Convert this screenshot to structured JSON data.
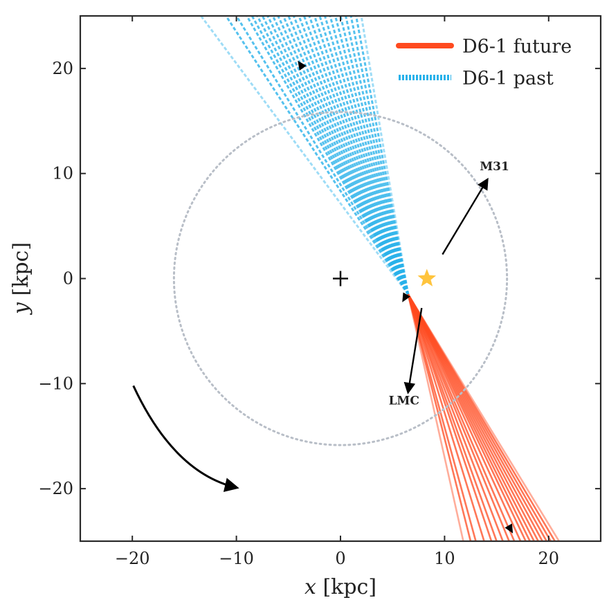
{
  "chart_data": {
    "type": "line",
    "xlabel_var": "x",
    "xlabel_unit": "[kpc]",
    "ylabel_var": "y",
    "ylabel_unit": "[kpc]",
    "xlim": [
      -25,
      25
    ],
    "ylim": [
      -25,
      25
    ],
    "xticks": [
      -20,
      -10,
      0,
      10,
      20
    ],
    "yticks": [
      -20,
      -10,
      0,
      10,
      20
    ],
    "xtick_labels": [
      "−20",
      "−10",
      "0",
      "10",
      "20"
    ],
    "ytick_labels": [
      "−20",
      "−10",
      "0",
      "10",
      "20"
    ],
    "grid": false,
    "legend_position": "top-right",
    "series": [
      {
        "name": "D6-1 future",
        "style": "solid",
        "color": "#ff4a1f",
        "origin": [
          6.5,
          -1.5
        ],
        "end_x": [
          11.8,
          12.5,
          13.0,
          13.8,
          14.5,
          15.0,
          15.6,
          16.2,
          16.7,
          17.3,
          17.8,
          18.2,
          18.6,
          19.0,
          19.4,
          19.8,
          20.2,
          20.6,
          21.0
        ],
        "end_y": [
          -25,
          -25,
          -25,
          -25,
          -25,
          -25,
          -25,
          -25,
          -25,
          -25,
          -25,
          -25,
          -25,
          -25,
          -25,
          -25,
          -25,
          -25,
          -25
        ],
        "direction_marker": [
          16.3,
          -23.8
        ]
      },
      {
        "name": "D6-1 past",
        "style": "dashed",
        "color": "#29b2ea",
        "origin": [
          6.5,
          -1.5
        ],
        "end_x": [
          -13.4,
          -11.0,
          -10.0,
          -9.0,
          -8.5,
          -8.0,
          -7.5,
          -7.0,
          -6.5,
          -6.0,
          -5.5,
          -5.0,
          -4.5,
          -4.0,
          -3.5,
          -3.0,
          -2.5,
          -2.0,
          -1.5,
          -1.0,
          -0.5,
          0.0,
          0.5,
          1.0,
          1.5,
          2.0
        ],
        "end_y": [
          25,
          25,
          25,
          25,
          25,
          25,
          25,
          25,
          25,
          25,
          25,
          25,
          25,
          25,
          25,
          25,
          25,
          25,
          25,
          25,
          25,
          25,
          25,
          25,
          25,
          25
        ],
        "direction_marker": [
          -3.8,
          20.3
        ]
      }
    ],
    "circle": {
      "center": [
        0,
        0
      ],
      "radius": 16,
      "style": "dotted",
      "color": "#b8bec7"
    },
    "galactic_center": {
      "x": 0,
      "y": 0,
      "marker": "plus",
      "color": "#111111"
    },
    "sun": {
      "x": 8.3,
      "y": 0,
      "marker": "star",
      "color": "#ffc43d"
    },
    "arrows": [
      {
        "label": "M31",
        "from": [
          9.8,
          2.3
        ],
        "to": [
          14.1,
          9.4
        ],
        "label_at": [
          14.8,
          10.3
        ]
      },
      {
        "label": "LMC",
        "from": [
          7.8,
          -2.8
        ],
        "to": [
          6.5,
          -10.8
        ],
        "label_at": [
          6.1,
          -12.0
        ]
      }
    ],
    "rotation_arrow": {
      "from": [
        -19.9,
        -10.2
      ],
      "ctrl": [
        -16.0,
        -18.5
      ],
      "to": [
        -10.0,
        -19.9
      ]
    }
  },
  "legend": {
    "future_label": "D6-1 future",
    "past_label": "D6-1 past"
  },
  "annotations": {
    "m31_label": "M31",
    "lmc_label": "LMC"
  }
}
